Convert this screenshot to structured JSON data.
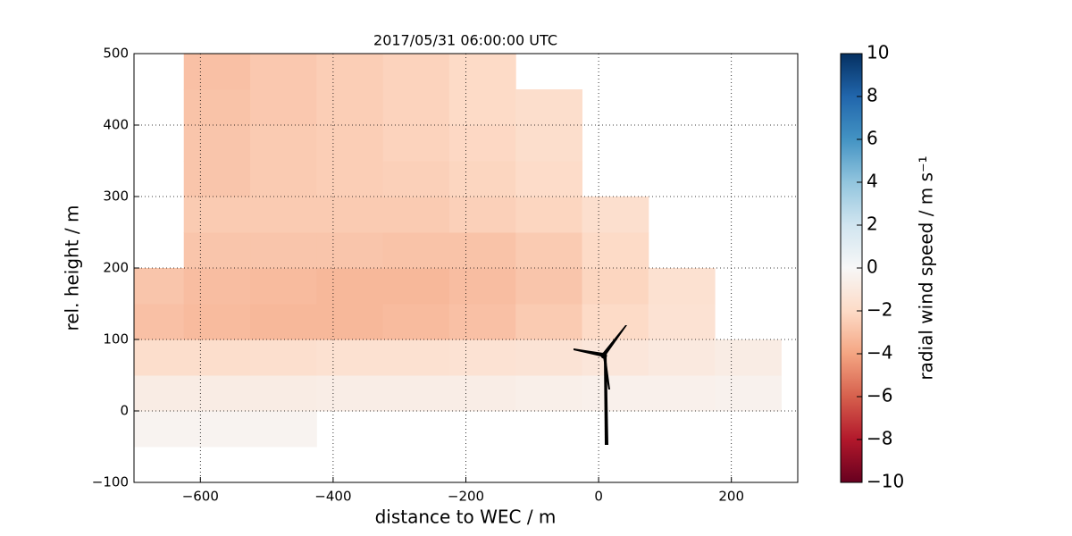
{
  "chart_data": {
    "type": "scatter",
    "title": "2017/05/31 06:00:00 UTC",
    "x_label": "distance to WEC / m",
    "y_label": "rel. height / m",
    "colorbar_label": "radial wind speed / m s⁻¹",
    "colormap": "RdBu",
    "marker": "square",
    "xlim": [
      -700,
      300
    ],
    "ylim": [
      -100,
      500
    ],
    "clim": [
      -10,
      10
    ],
    "grid": true,
    "xticks": [
      {
        "value": -600,
        "label": "−600"
      },
      {
        "value": -400,
        "label": "−400"
      },
      {
        "value": -200,
        "label": "−200"
      },
      0,
      200
    ],
    "yticks": [
      {
        "value": -100,
        "label": "−100"
      },
      0,
      100,
      200,
      300,
      400,
      500
    ],
    "cticks": [
      {
        "value": -10,
        "label": "−10"
      },
      {
        "value": -8,
        "label": "−8"
      },
      {
        "value": -6,
        "label": "−6"
      },
      {
        "value": -4,
        "label": "−4"
      },
      {
        "value": -2,
        "label": "−2"
      },
      0,
      2,
      4,
      6,
      8,
      10
    ],
    "x": [
      -675,
      -575,
      -475,
      -675,
      -575,
      -475,
      -375,
      -275,
      -175,
      -75,
      25,
      125,
      225,
      -675,
      -575,
      -475,
      -375,
      -275,
      -175,
      -75,
      25,
      125,
      225,
      -675,
      -575,
      -475,
      -375,
      -275,
      -175,
      -75,
      25,
      125,
      -675,
      -575,
      -475,
      -375,
      -275,
      -175,
      -75,
      25,
      125,
      -575,
      -475,
      -375,
      -275,
      -175,
      -75,
      25,
      -575,
      -475,
      -375,
      -275,
      -175,
      -75,
      25,
      -575,
      -475,
      -375,
      -275,
      -175,
      -75,
      -575,
      -475,
      -375,
      -275,
      -175,
      -75,
      -575,
      -475,
      -375,
      -275,
      -175,
      -75,
      -575,
      -475,
      -375,
      -275,
      -175
    ],
    "y": [
      -25,
      -25,
      -25,
      25,
      25,
      25,
      25,
      25,
      25,
      25,
      25,
      25,
      25,
      75,
      75,
      75,
      75,
      75,
      75,
      75,
      75,
      75,
      75,
      125,
      125,
      125,
      125,
      125,
      125,
      125,
      125,
      125,
      175,
      175,
      175,
      175,
      175,
      175,
      175,
      175,
      175,
      225,
      225,
      225,
      225,
      225,
      225,
      225,
      275,
      275,
      275,
      275,
      275,
      275,
      275,
      325,
      325,
      325,
      325,
      325,
      325,
      375,
      375,
      375,
      375,
      375,
      375,
      425,
      425,
      425,
      425,
      425,
      425,
      475,
      475,
      475,
      475,
      475
    ],
    "values": [
      -0.3,
      -0.3,
      -0.3,
      -0.8,
      -0.8,
      -0.8,
      -0.7,
      -0.7,
      -0.7,
      -0.6,
      -0.5,
      -0.5,
      -0.4,
      -1.8,
      -1.8,
      -1.7,
      -1.6,
      -1.6,
      -1.5,
      -1.4,
      -1.2,
      -1.0,
      -0.8,
      -3.0,
      -3.2,
      -3.3,
      -3.3,
      -3.2,
      -3.0,
      -2.6,
      -2.0,
      -1.5,
      -2.8,
      -3.1,
      -3.2,
      -3.3,
      -3.3,
      -3.1,
      -2.8,
      -2.2,
      -1.6,
      -2.8,
      -2.8,
      -2.8,
      -2.9,
      -2.9,
      -2.6,
      -2.0,
      -2.6,
      -2.6,
      -2.6,
      -2.6,
      -2.4,
      -2.2,
      -1.7,
      -2.8,
      -2.6,
      -2.5,
      -2.4,
      -2.2,
      -1.9,
      -2.8,
      -2.6,
      -2.5,
      -2.3,
      -2.1,
      -1.8,
      -2.9,
      -2.7,
      -2.5,
      -2.3,
      -2.0,
      -1.8,
      -3.0,
      -2.7,
      -2.5,
      -2.3,
      -2.0
    ]
  }
}
